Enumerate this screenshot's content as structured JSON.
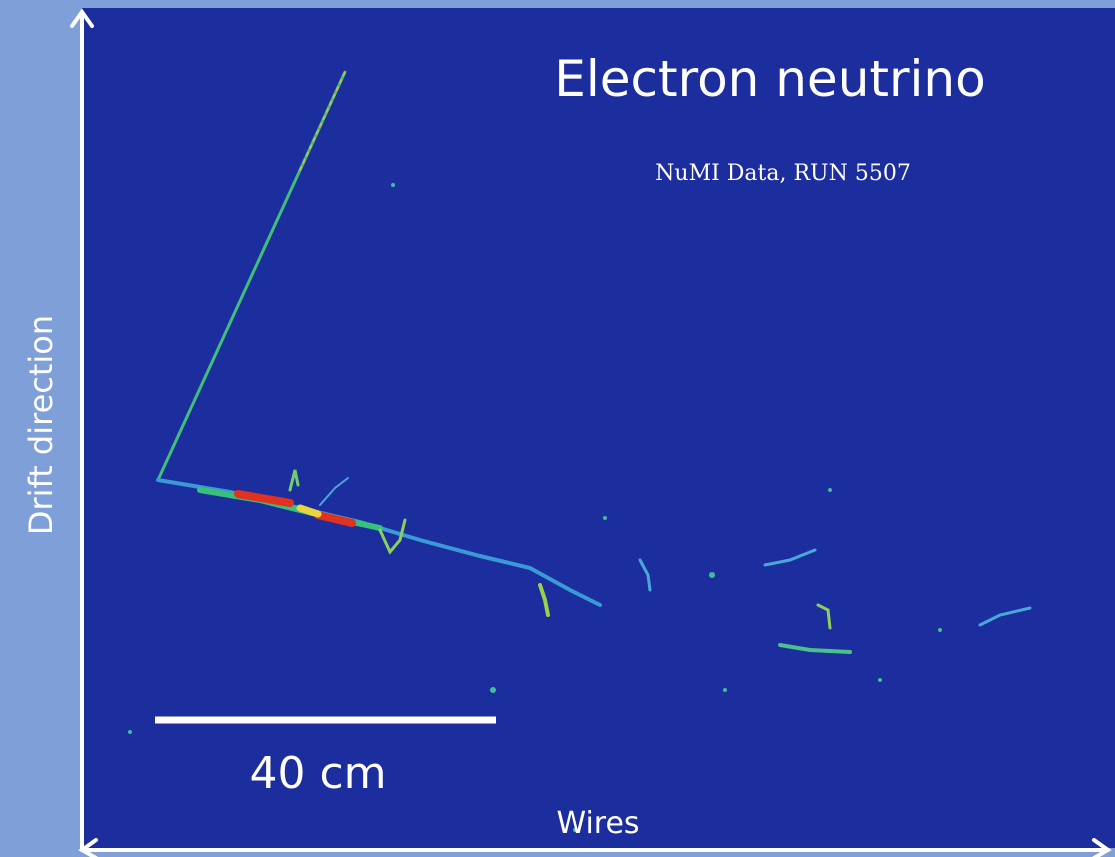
{
  "title": "Electron neutrino",
  "subtitle": "NuMI Data, RUN 5507",
  "scale_bar": {
    "label": "40 cm"
  },
  "axes": {
    "x_label": "Wires",
    "y_label": "Drift direction"
  }
}
